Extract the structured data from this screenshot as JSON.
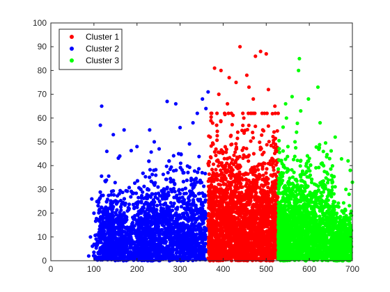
{
  "chart_data": {
    "type": "scatter",
    "title": "",
    "xlabel": "",
    "ylabel": "",
    "xlim": [
      0,
      700
    ],
    "ylim": [
      0,
      100
    ],
    "xticks": [
      0,
      100,
      200,
      300,
      400,
      500,
      600,
      700
    ],
    "yticks": [
      0,
      10,
      20,
      30,
      40,
      50,
      60,
      70,
      80,
      90,
      100
    ],
    "grid": false,
    "legend_position": "top-left",
    "series": [
      {
        "name": "Cluster 1",
        "color": "#ff0000",
        "x_range": [
          365,
          528
        ],
        "y_range": [
          0,
          90
        ],
        "points": [
          [
            439,
            90
          ],
          [
            487,
            88
          ],
          [
            500,
            87
          ],
          [
            475,
            86
          ],
          [
            380,
            81
          ],
          [
            395,
            80
          ],
          [
            455,
            78
          ],
          [
            414,
            77
          ],
          [
            430,
            75
          ],
          [
            460,
            73
          ],
          [
            505,
            72
          ],
          [
            390,
            70
          ],
          [
            470,
            68
          ],
          [
            410,
            66
          ],
          [
            520,
            65
          ],
          [
            372,
            62
          ],
          [
            448,
            60
          ],
          [
            385,
            57
          ],
          [
            492,
            55
          ],
          [
            370,
            52
          ]
        ]
      },
      {
        "name": "Cluster 2",
        "color": "#0000ff",
        "x_range": [
          85,
          365
        ],
        "y_range": [
          0,
          71
        ],
        "points": [
          [
            118,
            65
          ],
          [
            365,
            71
          ],
          [
            352,
            68
          ],
          [
            270,
            67
          ],
          [
            290,
            66
          ],
          [
            360,
            64
          ],
          [
            340,
            62
          ],
          [
            115,
            57
          ],
          [
            330,
            58
          ],
          [
            170,
            55
          ],
          [
            145,
            53
          ],
          [
            300,
            56
          ],
          [
            240,
            50
          ],
          [
            200,
            48
          ],
          [
            130,
            46
          ],
          [
            160,
            44
          ],
          [
            95,
            26
          ],
          [
            100,
            20
          ],
          [
            92,
            10
          ],
          [
            88,
            2
          ]
        ]
      },
      {
        "name": "Cluster 3",
        "color": "#00ff00",
        "x_range": [
          528,
          700
        ],
        "y_range": [
          0,
          85
        ],
        "points": [
          [
            577,
            85
          ],
          [
            575,
            80
          ],
          [
            620,
            73
          ],
          [
            560,
            69
          ],
          [
            598,
            68
          ],
          [
            545,
            66
          ],
          [
            580,
            63
          ],
          [
            625,
            58
          ],
          [
            660,
            52
          ],
          [
            690,
            42
          ],
          [
            695,
            38
          ],
          [
            700,
            33
          ],
          [
            685,
            30
          ],
          [
            680,
            20
          ],
          [
            672,
            14
          ],
          [
            655,
            8
          ],
          [
            640,
            4
          ],
          [
            590,
            2
          ],
          [
            545,
            6
          ],
          [
            535,
            10
          ]
        ]
      }
    ]
  }
}
